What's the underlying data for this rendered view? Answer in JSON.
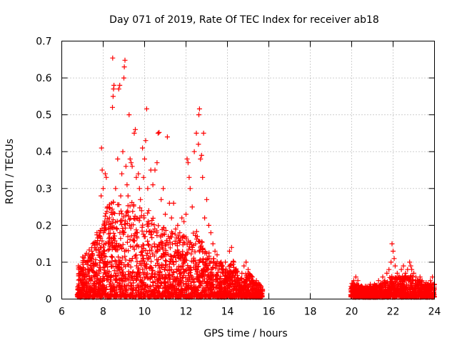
{
  "chart_data": {
    "type": "scatter",
    "title": "Day 071 of 2019, Rate Of TEC Index for receiver ab18",
    "xlabel": "GPS time / hours",
    "ylabel": "ROTI / TECUs",
    "xlim": [
      6,
      24
    ],
    "ylim": [
      0,
      0.7
    ],
    "xticks": [
      6,
      8,
      10,
      12,
      14,
      16,
      18,
      20,
      22,
      24
    ],
    "yticks": [
      0,
      0.1,
      0.2,
      0.3,
      0.4,
      0.5,
      0.6,
      0.7
    ],
    "xtick_labels": [
      "6",
      "8",
      "10",
      "12",
      "14",
      "16",
      "18",
      "20",
      "22",
      "24"
    ],
    "ytick_labels": [
      "0",
      "0.1",
      "0.2",
      "0.3",
      "0.4",
      "0.5",
      "0.6",
      "0.7"
    ],
    "grid": true,
    "marker": "plus",
    "color": "#ff0000",
    "series": [
      {
        "name": "ab18",
        "points": [
          [
            6.8,
            0.09
          ],
          [
            6.9,
            0.05
          ],
          [
            7.0,
            0.08
          ],
          [
            7.1,
            0.06
          ],
          [
            7.2,
            0.1
          ],
          [
            7.3,
            0.12
          ],
          [
            7.4,
            0.09
          ],
          [
            7.5,
            0.15
          ],
          [
            7.6,
            0.14
          ],
          [
            7.7,
            0.18
          ],
          [
            7.8,
            0.12
          ],
          [
            7.9,
            0.28
          ],
          [
            7.92,
            0.41
          ],
          [
            7.95,
            0.35
          ],
          [
            8.0,
            0.3
          ],
          [
            8.05,
            0.2
          ],
          [
            8.1,
            0.34
          ],
          [
            8.15,
            0.33
          ],
          [
            8.2,
            0.25
          ],
          [
            8.3,
            0.22
          ],
          [
            8.4,
            0.26
          ],
          [
            8.45,
            0.52
          ],
          [
            8.48,
            0.55
          ],
          [
            8.5,
            0.57
          ],
          [
            8.52,
            0.58
          ],
          [
            8.46,
            0.654
          ],
          [
            8.6,
            0.3
          ],
          [
            8.7,
            0.38
          ],
          [
            8.75,
            0.57
          ],
          [
            8.8,
            0.58
          ],
          [
            8.85,
            0.28
          ],
          [
            8.9,
            0.34
          ],
          [
            8.95,
            0.4
          ],
          [
            9.0,
            0.6
          ],
          [
            9.02,
            0.63
          ],
          [
            9.05,
            0.648
          ],
          [
            9.1,
            0.36
          ],
          [
            9.15,
            0.31
          ],
          [
            9.2,
            0.28
          ],
          [
            9.25,
            0.5
          ],
          [
            9.3,
            0.38
          ],
          [
            9.35,
            0.37
          ],
          [
            9.4,
            0.36
          ],
          [
            9.5,
            0.45
          ],
          [
            9.55,
            0.46
          ],
          [
            9.6,
            0.33
          ],
          [
            9.7,
            0.34
          ],
          [
            9.75,
            0.3
          ],
          [
            9.8,
            0.27
          ],
          [
            9.9,
            0.41
          ],
          [
            9.95,
            0.33
          ],
          [
            10.0,
            0.38
          ],
          [
            10.05,
            0.43
          ],
          [
            10.1,
            0.516
          ],
          [
            10.15,
            0.3
          ],
          [
            10.2,
            0.24
          ],
          [
            10.3,
            0.35
          ],
          [
            10.4,
            0.31
          ],
          [
            10.5,
            0.35
          ],
          [
            10.6,
            0.37
          ],
          [
            10.65,
            0.45
          ],
          [
            10.7,
            0.452
          ],
          [
            10.8,
            0.27
          ],
          [
            10.9,
            0.3
          ],
          [
            11.0,
            0.23
          ],
          [
            11.1,
            0.44
          ],
          [
            11.2,
            0.26
          ],
          [
            11.3,
            0.22
          ],
          [
            11.4,
            0.26
          ],
          [
            11.5,
            0.19
          ],
          [
            11.6,
            0.2
          ],
          [
            11.7,
            0.18
          ],
          [
            11.8,
            0.22
          ],
          [
            11.9,
            0.21
          ],
          [
            12.0,
            0.23
          ],
          [
            12.05,
            0.38
          ],
          [
            12.1,
            0.37
          ],
          [
            12.15,
            0.33
          ],
          [
            12.2,
            0.3
          ],
          [
            12.3,
            0.25
          ],
          [
            12.4,
            0.4
          ],
          [
            12.5,
            0.45
          ],
          [
            12.6,
            0.42
          ],
          [
            12.62,
            0.5
          ],
          [
            12.65,
            0.516
          ],
          [
            12.7,
            0.38
          ],
          [
            12.75,
            0.39
          ],
          [
            12.8,
            0.33
          ],
          [
            12.85,
            0.45
          ],
          [
            12.9,
            0.22
          ],
          [
            13.0,
            0.27
          ],
          [
            13.1,
            0.2
          ],
          [
            13.2,
            0.18
          ],
          [
            13.3,
            0.15
          ],
          [
            13.4,
            0.13
          ],
          [
            13.5,
            0.12
          ],
          [
            13.6,
            0.08
          ],
          [
            13.7,
            0.1
          ],
          [
            13.8,
            0.07
          ],
          [
            13.9,
            0.1
          ],
          [
            14.0,
            0.07
          ],
          [
            14.1,
            0.13
          ],
          [
            14.2,
            0.14
          ],
          [
            14.3,
            0.1
          ],
          [
            14.4,
            0.07
          ],
          [
            14.5,
            0.05
          ],
          [
            14.6,
            0.04
          ],
          [
            14.7,
            0.07
          ],
          [
            14.8,
            0.09
          ],
          [
            14.9,
            0.1
          ],
          [
            15.0,
            0.08
          ],
          [
            15.1,
            0.04
          ],
          [
            15.2,
            0.03
          ],
          [
            15.3,
            0.04
          ],
          [
            15.4,
            0.05
          ],
          [
            15.5,
            0.04
          ],
          [
            15.6,
            0.03
          ],
          [
            20.0,
            0.03
          ],
          [
            20.1,
            0.05
          ],
          [
            20.15,
            0.04
          ],
          [
            20.2,
            0.06
          ],
          [
            20.3,
            0.05
          ],
          [
            20.4,
            0.03
          ],
          [
            20.5,
            0.02
          ],
          [
            20.6,
            0.03
          ],
          [
            20.7,
            0.02
          ],
          [
            20.8,
            0.03
          ],
          [
            20.9,
            0.04
          ],
          [
            21.0,
            0.03
          ],
          [
            21.1,
            0.04
          ],
          [
            21.2,
            0.03
          ],
          [
            21.3,
            0.05
          ],
          [
            21.4,
            0.04
          ],
          [
            21.5,
            0.06
          ],
          [
            21.6,
            0.05
          ],
          [
            21.7,
            0.07
          ],
          [
            21.8,
            0.08
          ],
          [
            21.9,
            0.1
          ],
          [
            21.95,
            0.15
          ],
          [
            22.0,
            0.13
          ],
          [
            22.05,
            0.11
          ],
          [
            22.1,
            0.09
          ],
          [
            22.2,
            0.07
          ],
          [
            22.3,
            0.06
          ],
          [
            22.4,
            0.08
          ],
          [
            22.5,
            0.09
          ],
          [
            22.6,
            0.07
          ],
          [
            22.7,
            0.08
          ],
          [
            22.8,
            0.1
          ],
          [
            22.85,
            0.09
          ],
          [
            22.9,
            0.08
          ],
          [
            23.0,
            0.07
          ],
          [
            23.1,
            0.06
          ],
          [
            23.2,
            0.05
          ],
          [
            23.3,
            0.06
          ],
          [
            23.4,
            0.05
          ],
          [
            23.5,
            0.04
          ],
          [
            23.6,
            0.03
          ],
          [
            23.7,
            0.04
          ],
          [
            23.8,
            0.05
          ],
          [
            23.9,
            0.06
          ],
          [
            24.0,
            0.04
          ]
        ],
        "dense_bands": [
          {
            "x0": 6.75,
            "x1": 15.7,
            "peaks": [
              [
                6.8,
                0.1
              ],
              [
                7.5,
                0.14
              ],
              [
                8.0,
                0.24
              ],
              [
                8.5,
                0.26
              ],
              [
                9.0,
                0.25
              ],
              [
                9.5,
                0.26
              ],
              [
                10.0,
                0.24
              ],
              [
                10.5,
                0.21
              ],
              [
                11.0,
                0.19
              ],
              [
                11.5,
                0.17
              ],
              [
                12.0,
                0.17
              ],
              [
                12.5,
                0.18
              ],
              [
                13.0,
                0.13
              ],
              [
                13.5,
                0.1
              ],
              [
                14.0,
                0.08
              ],
              [
                14.3,
                0.1
              ],
              [
                14.6,
                0.05
              ],
              [
                15.0,
                0.07
              ],
              [
                15.5,
                0.04
              ],
              [
                15.7,
                0.03
              ]
            ]
          },
          {
            "x0": 19.95,
            "x1": 24.0,
            "peaks": [
              [
                20.0,
                0.04
              ],
              [
                20.5,
                0.03
              ],
              [
                21.0,
                0.03
              ],
              [
                21.5,
                0.04
              ],
              [
                22.0,
                0.06
              ],
              [
                22.5,
                0.06
              ],
              [
                23.0,
                0.06
              ],
              [
                23.5,
                0.04
              ],
              [
                24.0,
                0.04
              ]
            ]
          }
        ]
      }
    ]
  }
}
